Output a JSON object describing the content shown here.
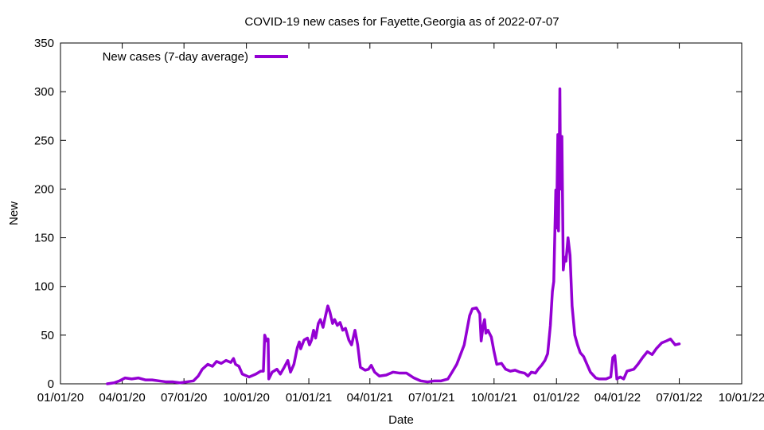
{
  "chart_data": {
    "type": "line",
    "title": "COVID-19 new cases for Fayette,Georgia as of 2022-07-07",
    "xlabel": "Date",
    "ylabel": "New",
    "xlim": [
      "2020-01-01",
      "2022-10-01"
    ],
    "ylim": [
      0,
      350
    ],
    "x_ticks": [
      "2020-01-01",
      "2020-04-01",
      "2020-07-01",
      "2020-10-01",
      "2021-01-01",
      "2021-04-01",
      "2021-07-01",
      "2021-10-01",
      "2022-01-01",
      "2022-04-01",
      "2022-07-01",
      "2022-10-01"
    ],
    "x_tick_labels": [
      "01/01/20",
      "04/01/20",
      "07/01/20",
      "10/01/20",
      "01/01/21",
      "04/01/21",
      "07/01/21",
      "10/01/21",
      "01/01/22",
      "04/01/22",
      "07/01/22",
      "10/01/22"
    ],
    "y_ticks": [
      0,
      50,
      100,
      150,
      200,
      250,
      300,
      350
    ],
    "y_tick_labels": [
      "0",
      "50",
      "100",
      "150",
      "200",
      "250",
      "300",
      "350"
    ],
    "grid": false,
    "legend_position": "top-left",
    "series": [
      {
        "name": "New cases (7-day average)",
        "color": "#9400d3",
        "points": [
          [
            "2020-03-10",
            0
          ],
          [
            "2020-03-20",
            1
          ],
          [
            "2020-03-28",
            3
          ],
          [
            "2020-04-05",
            6
          ],
          [
            "2020-04-15",
            5
          ],
          [
            "2020-04-25",
            6
          ],
          [
            "2020-05-05",
            4
          ],
          [
            "2020-05-15",
            4
          ],
          [
            "2020-05-25",
            3
          ],
          [
            "2020-06-05",
            2
          ],
          [
            "2020-06-15",
            2
          ],
          [
            "2020-06-25",
            1
          ],
          [
            "2020-07-05",
            2
          ],
          [
            "2020-07-15",
            3
          ],
          [
            "2020-07-22",
            8
          ],
          [
            "2020-07-28",
            15
          ],
          [
            "2020-08-05",
            20
          ],
          [
            "2020-08-12",
            18
          ],
          [
            "2020-08-18",
            23
          ],
          [
            "2020-08-25",
            21
          ],
          [
            "2020-09-01",
            24
          ],
          [
            "2020-09-08",
            22
          ],
          [
            "2020-09-12",
            26
          ],
          [
            "2020-09-15",
            20
          ],
          [
            "2020-09-20",
            18
          ],
          [
            "2020-09-25",
            10
          ],
          [
            "2020-10-05",
            7
          ],
          [
            "2020-10-15",
            10
          ],
          [
            "2020-10-22",
            13
          ],
          [
            "2020-10-26",
            13
          ],
          [
            "2020-10-28",
            50
          ],
          [
            "2020-10-31",
            44
          ],
          [
            "2020-11-02",
            46
          ],
          [
            "2020-11-03",
            5
          ],
          [
            "2020-11-08",
            12
          ],
          [
            "2020-11-15",
            15
          ],
          [
            "2020-11-20",
            10
          ],
          [
            "2020-11-25",
            16
          ],
          [
            "2020-12-01",
            24
          ],
          [
            "2020-12-05",
            12
          ],
          [
            "2020-12-10",
            20
          ],
          [
            "2020-12-15",
            37
          ],
          [
            "2020-12-18",
            43
          ],
          [
            "2020-12-20",
            36
          ],
          [
            "2020-12-25",
            45
          ],
          [
            "2020-12-30",
            47
          ],
          [
            "2021-01-02",
            40
          ],
          [
            "2021-01-05",
            45
          ],
          [
            "2021-01-08",
            55
          ],
          [
            "2021-01-11",
            47
          ],
          [
            "2021-01-15",
            62
          ],
          [
            "2021-01-18",
            66
          ],
          [
            "2021-01-22",
            58
          ],
          [
            "2021-01-25",
            68
          ],
          [
            "2021-01-29",
            80
          ],
          [
            "2021-02-01",
            74
          ],
          [
            "2021-02-05",
            62
          ],
          [
            "2021-02-08",
            66
          ],
          [
            "2021-02-12",
            60
          ],
          [
            "2021-02-16",
            63
          ],
          [
            "2021-02-20",
            55
          ],
          [
            "2021-02-24",
            57
          ],
          [
            "2021-03-01",
            45
          ],
          [
            "2021-03-05",
            40
          ],
          [
            "2021-03-10",
            55
          ],
          [
            "2021-03-14",
            40
          ],
          [
            "2021-03-18",
            17
          ],
          [
            "2021-03-25",
            14
          ],
          [
            "2021-03-30",
            15
          ],
          [
            "2021-04-03",
            19
          ],
          [
            "2021-04-08",
            12
          ],
          [
            "2021-04-15",
            8
          ],
          [
            "2021-04-25",
            9
          ],
          [
            "2021-05-05",
            12
          ],
          [
            "2021-05-15",
            11
          ],
          [
            "2021-05-25",
            11
          ],
          [
            "2021-06-05",
            6
          ],
          [
            "2021-06-15",
            3
          ],
          [
            "2021-06-25",
            2
          ],
          [
            "2021-07-05",
            3
          ],
          [
            "2021-07-15",
            3
          ],
          [
            "2021-07-25",
            5
          ],
          [
            "2021-08-01",
            13
          ],
          [
            "2021-08-07",
            20
          ],
          [
            "2021-08-12",
            29
          ],
          [
            "2021-08-18",
            40
          ],
          [
            "2021-08-22",
            55
          ],
          [
            "2021-08-26",
            70
          ],
          [
            "2021-08-30",
            77
          ],
          [
            "2021-09-05",
            78
          ],
          [
            "2021-09-10",
            72
          ],
          [
            "2021-09-12",
            44
          ],
          [
            "2021-09-15",
            60
          ],
          [
            "2021-09-17",
            66
          ],
          [
            "2021-09-19",
            52
          ],
          [
            "2021-09-22",
            55
          ],
          [
            "2021-09-27",
            48
          ],
          [
            "2021-10-01",
            33
          ],
          [
            "2021-10-05",
            20
          ],
          [
            "2021-10-12",
            21
          ],
          [
            "2021-10-18",
            15
          ],
          [
            "2021-10-25",
            13
          ],
          [
            "2021-11-01",
            14
          ],
          [
            "2021-11-08",
            12
          ],
          [
            "2021-11-15",
            11
          ],
          [
            "2021-11-20",
            8
          ],
          [
            "2021-11-25",
            12
          ],
          [
            "2021-12-01",
            11
          ],
          [
            "2021-12-05",
            15
          ],
          [
            "2021-12-10",
            19
          ],
          [
            "2021-12-15",
            24
          ],
          [
            "2021-12-19",
            31
          ],
          [
            "2021-12-23",
            60
          ],
          [
            "2021-12-26",
            95
          ],
          [
            "2021-12-28",
            105
          ],
          [
            "2021-12-31",
            199
          ],
          [
            "2022-01-01",
            160
          ],
          [
            "2022-01-03",
            256
          ],
          [
            "2022-01-04",
            157
          ],
          [
            "2022-01-06",
            303
          ],
          [
            "2022-01-07",
            200
          ],
          [
            "2022-01-09",
            254
          ],
          [
            "2022-01-11",
            117
          ],
          [
            "2022-01-13",
            130
          ],
          [
            "2022-01-15",
            126
          ],
          [
            "2022-01-18",
            150
          ],
          [
            "2022-01-21",
            132
          ],
          [
            "2022-01-24",
            80
          ],
          [
            "2022-01-28",
            50
          ],
          [
            "2022-02-01",
            40
          ],
          [
            "2022-02-05",
            32
          ],
          [
            "2022-02-10",
            28
          ],
          [
            "2022-02-15",
            20
          ],
          [
            "2022-02-20",
            12
          ],
          [
            "2022-02-28",
            6
          ],
          [
            "2022-03-05",
            5
          ],
          [
            "2022-03-15",
            5
          ],
          [
            "2022-03-22",
            7
          ],
          [
            "2022-03-25",
            27
          ],
          [
            "2022-03-28",
            29
          ],
          [
            "2022-03-31",
            5
          ],
          [
            "2022-04-05",
            7
          ],
          [
            "2022-04-10",
            5
          ],
          [
            "2022-04-15",
            13
          ],
          [
            "2022-04-25",
            15
          ],
          [
            "2022-05-01",
            20
          ],
          [
            "2022-05-08",
            27
          ],
          [
            "2022-05-15",
            33
          ],
          [
            "2022-05-22",
            30
          ],
          [
            "2022-05-28",
            36
          ],
          [
            "2022-06-05",
            42
          ],
          [
            "2022-06-12",
            44
          ],
          [
            "2022-06-18",
            46
          ],
          [
            "2022-06-25",
            40
          ],
          [
            "2022-07-01",
            41
          ]
        ]
      }
    ]
  }
}
